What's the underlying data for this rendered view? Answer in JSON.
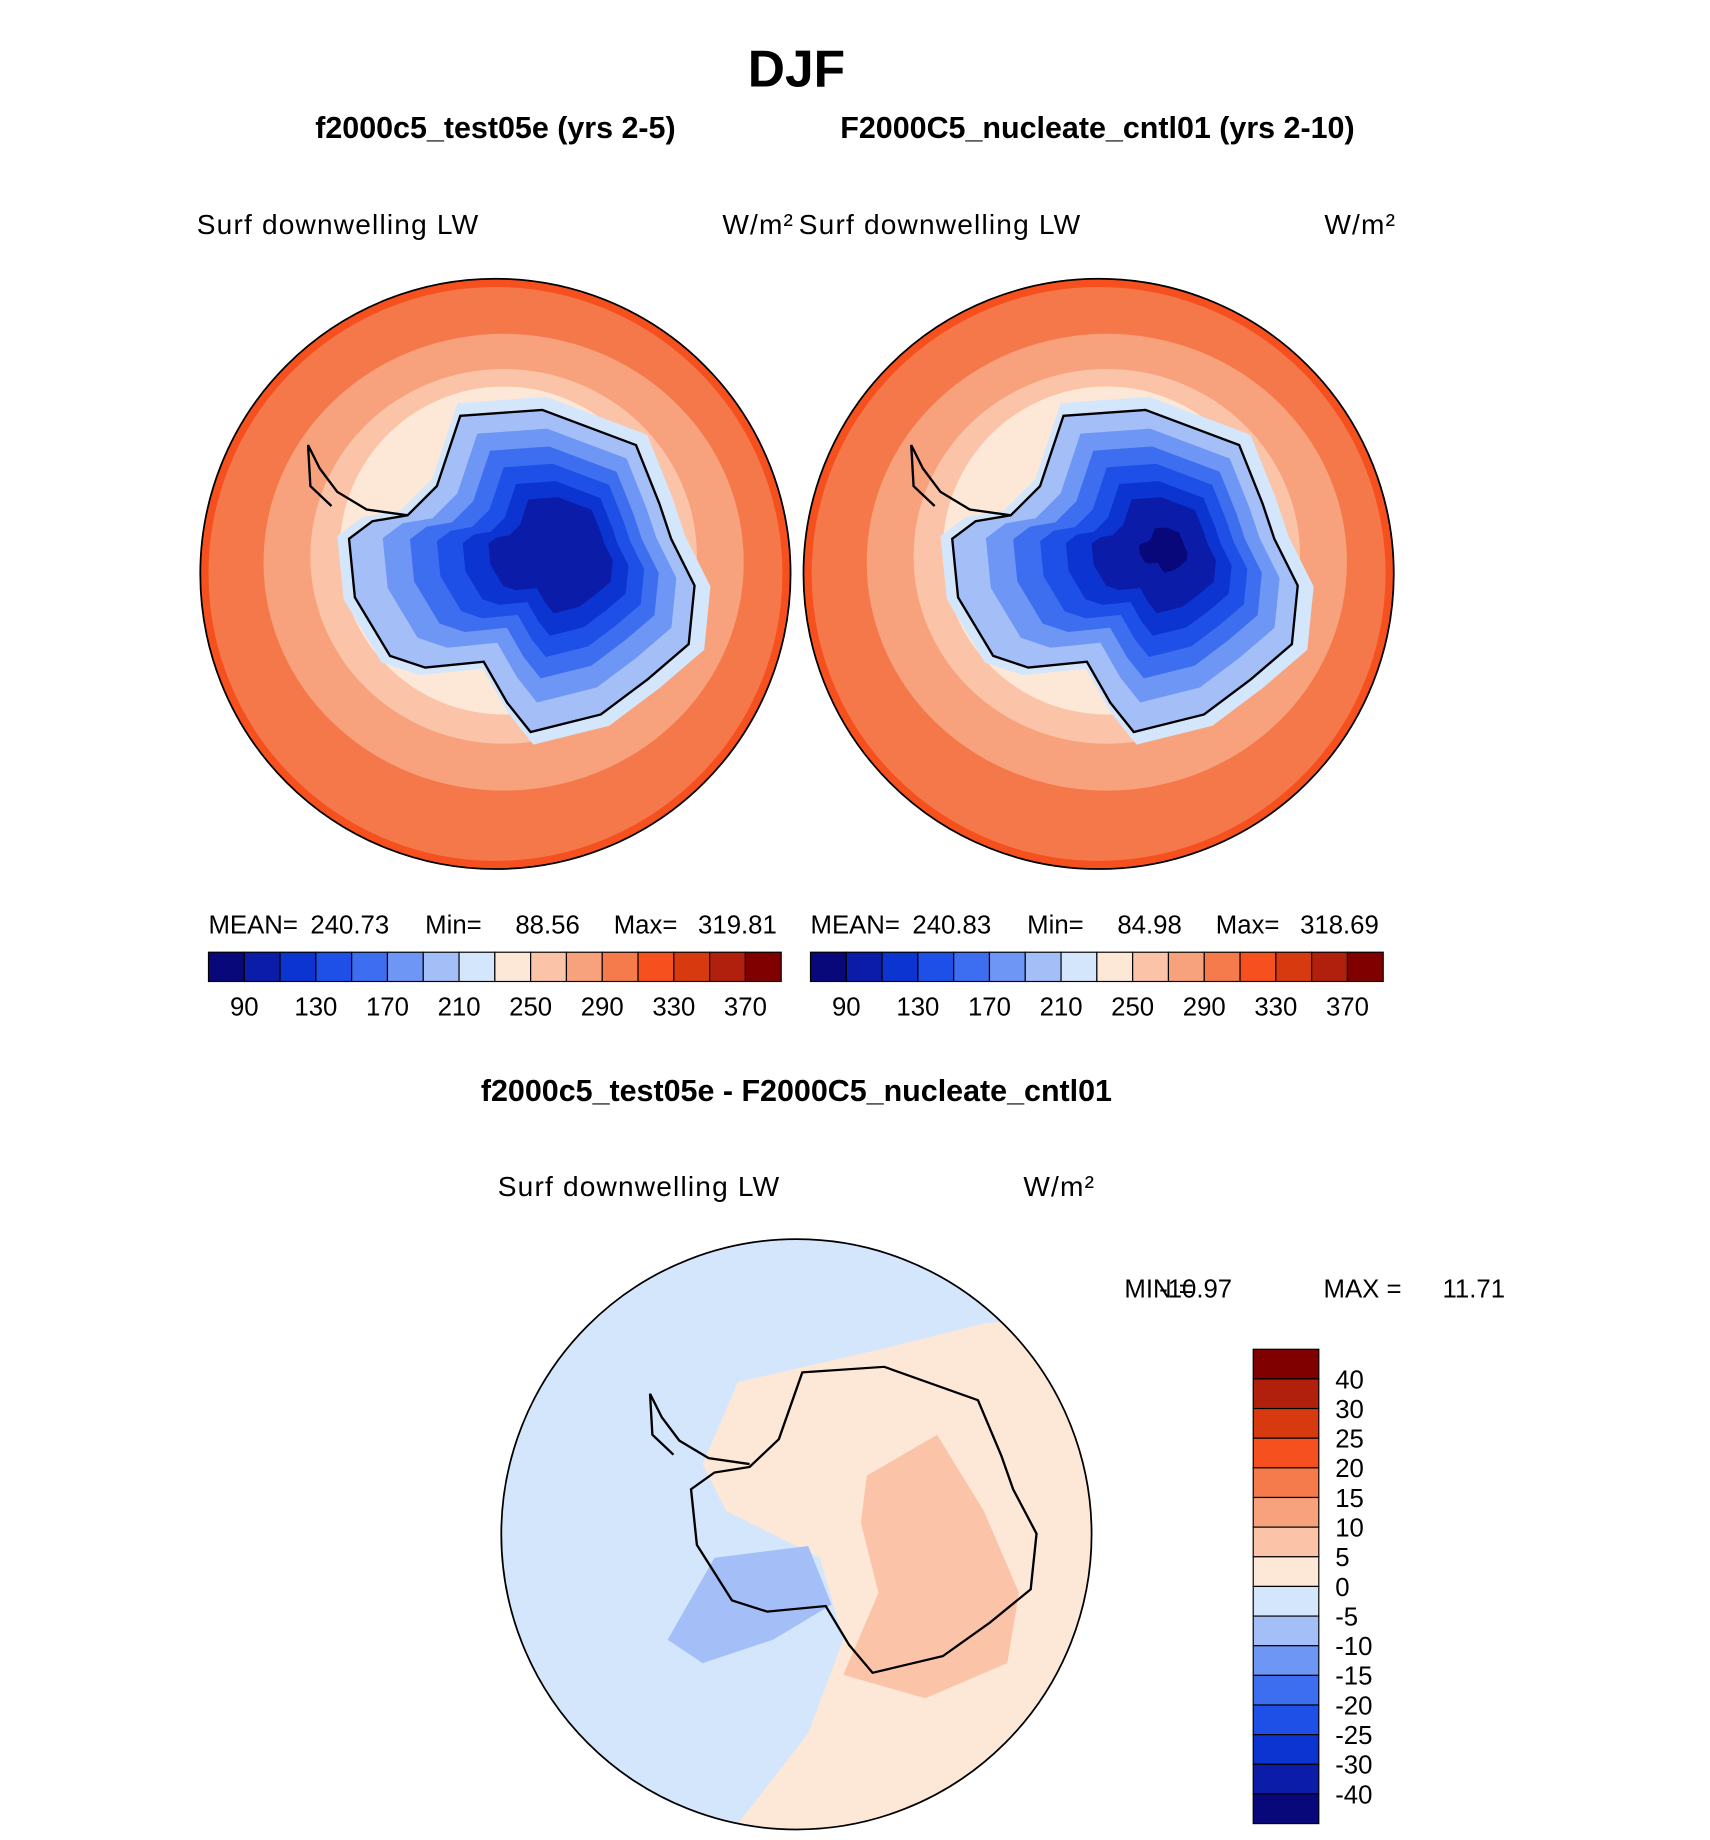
{
  "title": "DJF",
  "panels": [
    {
      "title": "f2000c5_test05e (yrs 2-5)",
      "variable": "Surf downwelling LW",
      "units": "W/m²",
      "stats": [
        {
          "label": "MEAN=",
          "value": 240.73
        },
        {
          "label": "Min=",
          "value": 88.56
        },
        {
          "label": "Max=",
          "value": 319.81
        }
      ]
    },
    {
      "title": "F2000C5_nucleate_cntl01 (yrs 2-10)",
      "variable": "Surf downwelling LW",
      "units": "W/m²",
      "stats": [
        {
          "label": "MEAN=",
          "value": 240.83
        },
        {
          "label": "Min=",
          "value": 84.98
        },
        {
          "label": "Max=",
          "value": 318.69
        }
      ]
    }
  ],
  "colorbar": {
    "labels": [
      90,
      130,
      170,
      210,
      250,
      290,
      330,
      370
    ],
    "colors": [
      "#08087a",
      "#0a1ca8",
      "#0b34d0",
      "#1e50e8",
      "#3d6ef0",
      "#6e96f4",
      "#a4bff8",
      "#d4e6fb",
      "#fde8d8",
      "#fbc4a8",
      "#f7a27c",
      "#f57a4c",
      "#f5501e",
      "#d83a10",
      "#b0200c",
      "#800000"
    ]
  },
  "difference": {
    "title": "f2000c5_test05e - F2000C5_nucleate_cntl01",
    "variable": "Surf downwelling LW",
    "units": "W/m²",
    "stats": [
      {
        "label": "MIN =",
        "value": -10.97
      },
      {
        "label": "MAX =",
        "value": 11.71
      }
    ]
  },
  "difference_colorbar": {
    "labels": [
      40,
      30,
      25,
      20,
      15,
      10,
      5,
      0,
      -5,
      -10,
      -15,
      -20,
      -25,
      -30,
      -40
    ],
    "colors": [
      "#800000",
      "#b0200c",
      "#d83a10",
      "#f5501e",
      "#f57a4c",
      "#f7a27c",
      "#fbc4a8",
      "#fde8d8",
      "#d4e6fb",
      "#a4bff8",
      "#6e96f4",
      "#3d6ef0",
      "#1e50e8",
      "#0b34d0",
      "#0a1ca8",
      "#08087a"
    ]
  }
}
